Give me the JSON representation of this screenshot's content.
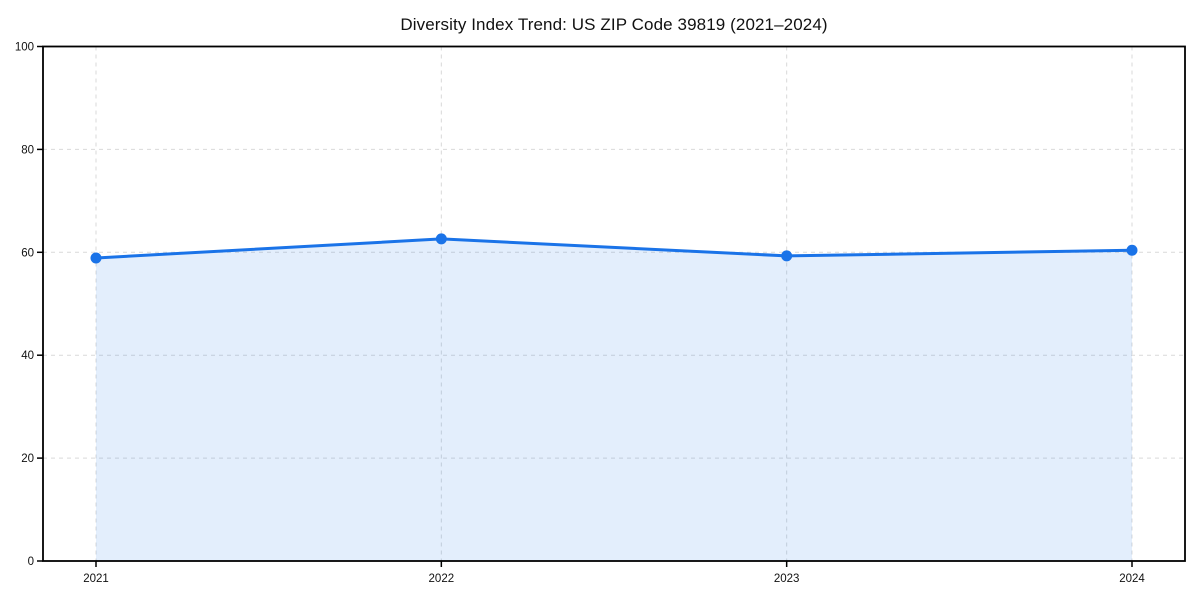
{
  "chart_data": {
    "type": "line",
    "title": "Diversity Index Trend: US ZIP Code 39819 (2021–2024)",
    "categories": [
      "2021",
      "2022",
      "2023",
      "2024"
    ],
    "series": [
      {
        "name": "Diversity Index",
        "values": [
          58.9,
          62.6,
          59.3,
          60.4
        ]
      }
    ],
    "xlabel": "",
    "ylabel": "",
    "ylim": [
      0,
      100
    ],
    "yticks": [
      0,
      20,
      40,
      60,
      80,
      100
    ],
    "grid": true,
    "grid_style": "dashed",
    "legend_position": "none",
    "area_fill": true,
    "marker": "circle",
    "colors": {
      "line": "#1a73e8",
      "fill": "rgba(26,115,232,0.12)",
      "grid": "#d9d9d9",
      "axis": "#000000",
      "text": "#111111",
      "background": "#ffffff"
    }
  }
}
